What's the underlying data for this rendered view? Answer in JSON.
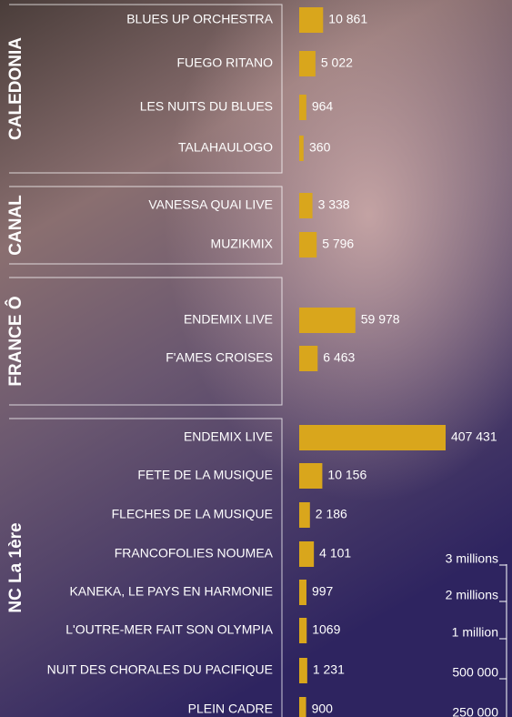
{
  "chart_data": {
    "type": "bar",
    "xscale": "sqrt",
    "color": "#d9a61c",
    "groups": [
      {
        "name": "CALEDONIA",
        "categories": [
          "BLUES UP ORCHESTRA",
          "FUEGO RITANO",
          "LES NUITS DU BLUES",
          "TALAHAULOGO"
        ],
        "values": [
          10861,
          5022,
          964,
          360
        ],
        "value_labels": [
          "10 861",
          "5 022",
          "964",
          "360"
        ]
      },
      {
        "name": "CANAL",
        "categories": [
          "VANESSA QUAI LIVE",
          "MUZIKMIX"
        ],
        "values": [
          3338,
          5796
        ],
        "value_labels": [
          "3 338",
          "5 796"
        ]
      },
      {
        "name": "FRANCE Ô",
        "categories": [
          "ENDEMIX LIVE",
          "F'AMES CROISES"
        ],
        "values": [
          59978,
          6463
        ],
        "value_labels": [
          "59 978",
          "6 463"
        ]
      },
      {
        "name": "NC La 1ère",
        "categories": [
          "ENDEMIX LIVE",
          "FETE DE LA MUSIQUE",
          "FLECHES DE LA MUSIQUE",
          "FRANCOFOLIES NOUMEA",
          "KANEKA, LE PAYS EN HARMONIE",
          "L'OUTRE-MER FAIT SON OLYMPIA",
          "NUIT DES CHORALES DU PACIFIQUE",
          "PLEIN CADRE"
        ],
        "values": [
          407431,
          10156,
          2186,
          4101,
          997,
          1069,
          1231,
          900
        ],
        "value_labels": [
          "407 431",
          "10 156",
          "2 186",
          "4 101",
          "997",
          "1069",
          "1 231",
          "900"
        ]
      }
    ],
    "legend_ticks": [
      {
        "value": 3000000,
        "label": "3 millions"
      },
      {
        "value": 2000000,
        "label": "2 millions"
      },
      {
        "value": 1000000,
        "label": "1 million"
      },
      {
        "value": 500000,
        "label": "500 000"
      },
      {
        "value": 250000,
        "label": "250 000"
      }
    ]
  }
}
